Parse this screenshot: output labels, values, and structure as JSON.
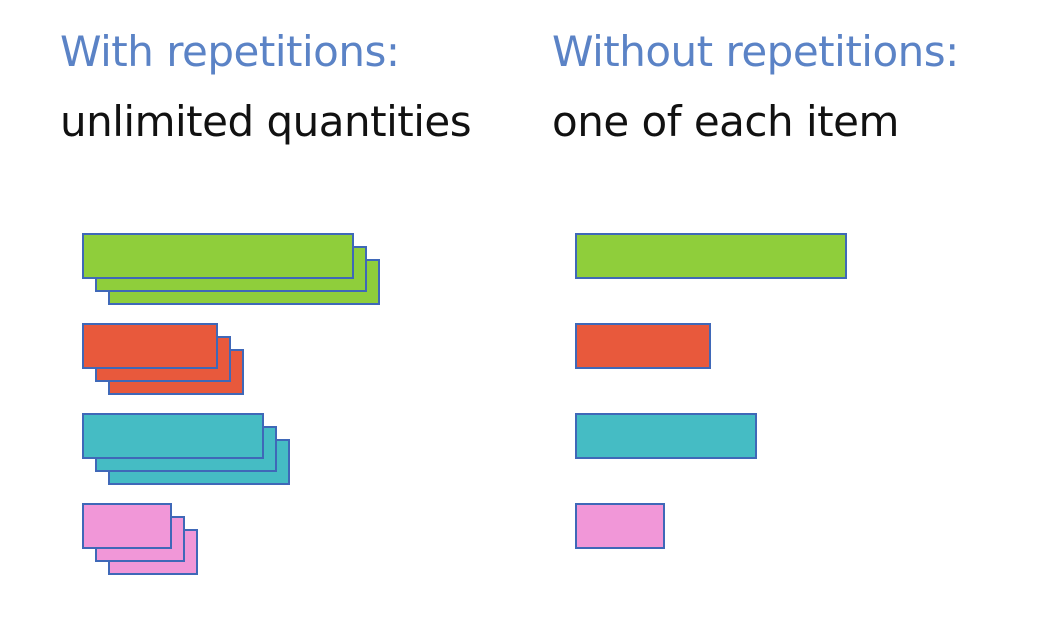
{
  "accent_color": "#5b83c6",
  "text_color": "#111111",
  "bar_border_color": "#3f68b8",
  "left": {
    "heading": "With repetitions:",
    "subheading": "unlimited quantities",
    "copies_per_item": 3
  },
  "right": {
    "heading": "Without repetitions:",
    "subheading": "one of each item",
    "copies_per_item": 1
  },
  "items": [
    {
      "name": "green",
      "color": "#8fce3b",
      "relative_length": 1.0
    },
    {
      "name": "red",
      "color": "#e8593c",
      "relative_length": 0.5
    },
    {
      "name": "teal",
      "color": "#45bcc4",
      "relative_length": 0.67
    },
    {
      "name": "pink",
      "color": "#f197d8",
      "relative_length": 0.33
    }
  ]
}
